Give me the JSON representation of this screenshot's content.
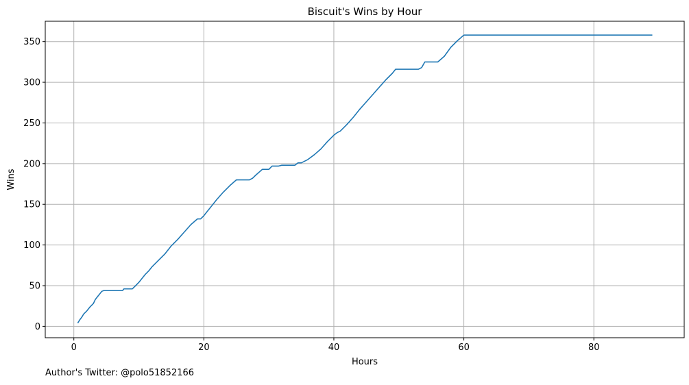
{
  "chart_data": {
    "type": "line",
    "title": "Biscuit's Wins by Hour",
    "xlabel": "Hours",
    "ylabel": "Wins",
    "xlim": [
      -4.4,
      93.9
    ],
    "ylim": [
      -14,
      375
    ],
    "xticks": [
      0,
      20,
      40,
      60,
      80
    ],
    "yticks": [
      0,
      50,
      100,
      150,
      200,
      250,
      300,
      350
    ],
    "grid": true,
    "line_color": "#1f77b4",
    "series": [
      {
        "x": [
          0.6,
          0.9,
          1.2,
          1.5,
          2.0,
          2.5,
          3.0,
          3.3,
          3.6,
          4.0,
          4.3,
          4.6,
          5.0,
          5.5,
          6.0,
          7.0,
          7.5,
          7.7,
          8.0,
          9.0,
          9.5,
          10.0,
          10.5,
          11.0,
          11.5,
          12.0,
          13.0,
          14.0,
          15.0,
          16.0,
          17.0,
          18.0,
          19.0,
          19.5,
          20.0,
          21.0,
          22.0,
          23.0,
          24.0,
          25.0,
          26.0,
          27.0,
          27.5,
          28.0,
          29.0,
          29.5,
          30.0,
          30.5,
          31.0,
          31.5,
          32.0,
          33.0,
          34.0,
          34.5,
          35.0,
          35.5,
          36.0,
          37.0,
          38.0,
          39.0,
          40.0,
          40.5,
          41.0,
          42.0,
          43.0,
          44.0,
          45.0,
          46.0,
          47.0,
          48.0,
          49.0,
          49.5,
          50.0,
          51.0,
          52.0,
          53.0,
          53.5,
          54.0,
          55.0,
          56.0,
          57.0,
          58.0,
          59.0,
          60.0,
          60.5,
          65.0,
          70.0,
          75.0,
          80.0,
          85.0,
          89.0
        ],
        "y": [
          4,
          8,
          11,
          15,
          19,
          24,
          28,
          33,
          36,
          40,
          43,
          44,
          44,
          44,
          44,
          44,
          44,
          46,
          46,
          46,
          50,
          54,
          59,
          64,
          68,
          73,
          81,
          89,
          99,
          107,
          116,
          125,
          132,
          132,
          136,
          146,
          156,
          165,
          173,
          180,
          180,
          180,
          182,
          186,
          193,
          193,
          193,
          197,
          197,
          197,
          198,
          198,
          198,
          201,
          201,
          203,
          205,
          211,
          218,
          227,
          235,
          238,
          240,
          248,
          257,
          267,
          276,
          285,
          294,
          303,
          311,
          316,
          316,
          316,
          316,
          316,
          318,
          325,
          325,
          325,
          332,
          343,
          351,
          358,
          358,
          358,
          358,
          358,
          358,
          358,
          358
        ]
      }
    ]
  },
  "footnote": "Author's Twitter: @polo51852166"
}
